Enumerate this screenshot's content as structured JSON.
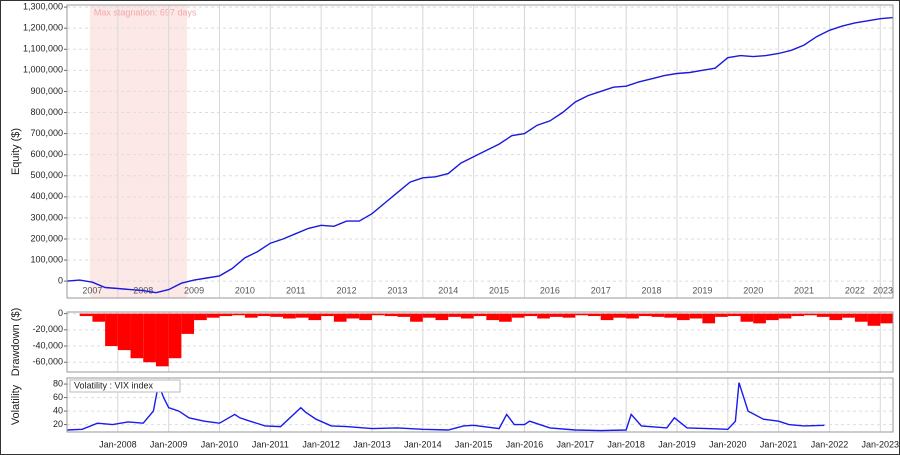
{
  "chart_data": [
    {
      "type": "line",
      "y_label": "Equity ($)",
      "color": "#1a1adb",
      "grid": true,
      "xlim": [
        2007.0,
        2023.25
      ],
      "ylim": [
        -80000,
        1310000
      ],
      "yticks": [
        {
          "value": 1300000,
          "label": "1,300,000"
        },
        {
          "value": 1200000,
          "label": "1,200,000"
        },
        {
          "value": 1100000,
          "label": "1,100,000"
        },
        {
          "value": 1000000,
          "label": "1,000,000"
        },
        {
          "value": 900000,
          "label": "900,000"
        },
        {
          "value": 800000,
          "label": "800,000"
        },
        {
          "value": 700000,
          "label": "700,000"
        },
        {
          "value": 600000,
          "label": "600,000"
        },
        {
          "value": 500000,
          "label": "500,000"
        },
        {
          "value": 400000,
          "label": "400,000"
        },
        {
          "value": 300000,
          "label": "300,000"
        },
        {
          "value": 200000,
          "label": "200,000"
        },
        {
          "value": 100000,
          "label": "100,000"
        },
        0
      ],
      "xticks": [
        {
          "value": 2007,
          "label": "2007"
        },
        {
          "value": 2008,
          "label": "2008"
        },
        {
          "value": 2009,
          "label": "2009"
        },
        {
          "value": 2010,
          "label": "2010"
        },
        {
          "value": 2011,
          "label": "2011"
        },
        {
          "value": 2012,
          "label": "2012"
        },
        {
          "value": 2013,
          "label": "2013"
        },
        {
          "value": 2014,
          "label": "2014"
        },
        {
          "value": 2015,
          "label": "2015"
        },
        {
          "value": 2016,
          "label": "2016"
        },
        {
          "value": 2017,
          "label": "2017"
        },
        {
          "value": 2018,
          "label": "2018"
        },
        {
          "value": 2019,
          "label": "2019"
        },
        {
          "value": 2020,
          "label": "2020"
        },
        {
          "value": 2021,
          "label": "2021"
        },
        {
          "value": 2022,
          "label": "2022"
        },
        {
          "value": 2023,
          "label": "2023"
        }
      ],
      "annotations": [
        {
          "text": "Max stagnation: 697 days",
          "x_start": 2007.45,
          "x_end": 2009.36,
          "color": "#fde8e8"
        }
      ],
      "x": [
        2007,
        2007.25,
        2007.5,
        2007.75,
        2008,
        2008.25,
        2008.5,
        2008.75,
        2009,
        2009.25,
        2009.5,
        2009.75,
        2010,
        2010.25,
        2010.5,
        2010.75,
        2011,
        2011.25,
        2011.5,
        2011.75,
        2012,
        2012.25,
        2012.5,
        2012.75,
        2013,
        2013.25,
        2013.5,
        2013.75,
        2014,
        2014.25,
        2014.5,
        2014.75,
        2015,
        2015.25,
        2015.5,
        2015.75,
        2016,
        2016.25,
        2016.5,
        2016.75,
        2017,
        2017.25,
        2017.5,
        2017.75,
        2018,
        2018.25,
        2018.5,
        2018.75,
        2019,
        2019.25,
        2019.5,
        2019.75,
        2020,
        2020.25,
        2020.5,
        2020.75,
        2021,
        2021.25,
        2021.5,
        2021.75,
        2022,
        2022.25,
        2022.5,
        2022.75,
        2023,
        2023.25
      ],
      "values": [
        0,
        5000,
        -5000,
        -30000,
        -35000,
        -40000,
        -45000,
        -55000,
        -40000,
        -10000,
        5000,
        15000,
        25000,
        60000,
        110000,
        140000,
        180000,
        200000,
        225000,
        250000,
        265000,
        260000,
        285000,
        285000,
        320000,
        370000,
        420000,
        470000,
        490000,
        495000,
        510000,
        560000,
        590000,
        620000,
        650000,
        690000,
        700000,
        740000,
        760000,
        800000,
        850000,
        880000,
        900000,
        920000,
        925000,
        945000,
        960000,
        975000,
        985000,
        990000,
        1000000,
        1010000,
        1060000,
        1070000,
        1065000,
        1070000,
        1080000,
        1095000,
        1120000,
        1160000,
        1190000,
        1210000,
        1225000,
        1235000,
        1245000,
        1250000
      ]
    },
    {
      "type": "bar",
      "y_label": "Drawdown ($)",
      "color": "#ff0000",
      "grid": true,
      "xlim": [
        2007.0,
        2023.25
      ],
      "ylim": [
        -72000,
        2000
      ],
      "yticks": [
        0,
        {
          "value": -20000,
          "label": "-20,000"
        },
        {
          "value": -40000,
          "label": "-40,000"
        },
        {
          "value": -60000,
          "label": "-60,000"
        }
      ],
      "x": [
        2007,
        2007.25,
        2007.5,
        2007.75,
        2008,
        2008.25,
        2008.5,
        2008.75,
        2009,
        2009.25,
        2009.5,
        2009.75,
        2010,
        2010.25,
        2010.5,
        2010.75,
        2011,
        2011.25,
        2011.5,
        2011.75,
        2012,
        2012.25,
        2012.5,
        2012.75,
        2013,
        2013.25,
        2013.5,
        2013.75,
        2014,
        2014.25,
        2014.5,
        2014.75,
        2015,
        2015.25,
        2015.5,
        2015.75,
        2016,
        2016.25,
        2016.5,
        2016.75,
        2017,
        2017.25,
        2017.5,
        2017.75,
        2018,
        2018.25,
        2018.5,
        2018.75,
        2019,
        2019.25,
        2019.5,
        2019.75,
        2020,
        2020.25,
        2020.5,
        2020.75,
        2021,
        2021.25,
        2021.5,
        2021.75,
        2022,
        2022.25,
        2022.5,
        2022.75,
        2023,
        2023.25
      ],
      "values": [
        0,
        -3000,
        -10000,
        -40000,
        -45000,
        -55000,
        -60000,
        -65000,
        -55000,
        -25000,
        -8000,
        -5000,
        -3000,
        -2000,
        -5000,
        -3000,
        -4000,
        -6000,
        -5000,
        -8000,
        -3000,
        -10000,
        -6000,
        -8000,
        -2000,
        -3000,
        -4000,
        -10000,
        -5000,
        -8000,
        -4000,
        -6000,
        -3000,
        -8000,
        -10000,
        -5000,
        -3000,
        -6000,
        -4000,
        -5000,
        -2000,
        -3000,
        -8000,
        -5000,
        -6000,
        -3000,
        -4000,
        -5000,
        -8000,
        -6000,
        -12000,
        -4000,
        -3000,
        -10000,
        -12000,
        -8000,
        -6000,
        -3000,
        -2000,
        -4000,
        -8000,
        -5000,
        -10000,
        -15000,
        -12000,
        -8000
      ]
    },
    {
      "type": "line",
      "y_label": "Volatility",
      "grid": true,
      "xlim": [
        2007.0,
        2023.25
      ],
      "ylim": [
        9,
        89
      ],
      "yticks": [
        80,
        60,
        40,
        20
      ],
      "xticks": [
        {
          "value": 2008,
          "label": "Jan-2008"
        },
        {
          "value": 2009,
          "label": "Jan-2009"
        },
        {
          "value": 2010,
          "label": "Jan-2010"
        },
        {
          "value": 2011,
          "label": "Jan-2011"
        },
        {
          "value": 2012,
          "label": "Jan-2012"
        },
        {
          "value": 2013,
          "label": "Jan-2013"
        },
        {
          "value": 2014,
          "label": "Jan-2014"
        },
        {
          "value": 2015,
          "label": "Jan-2015"
        },
        {
          "value": 2016,
          "label": "Jan-2016"
        },
        {
          "value": 2017,
          "label": "Jan-2017"
        },
        {
          "value": 2018,
          "label": "Jan-2018"
        },
        {
          "value": 2019,
          "label": "Jan-2019"
        },
        {
          "value": 2020,
          "label": "Jan-2020"
        },
        {
          "value": 2021,
          "label": "Jan-2021"
        },
        {
          "value": 2022,
          "label": "Jan-2022"
        },
        {
          "value": 2023,
          "label": "Jan-2023"
        }
      ],
      "x": [
        2007,
        2007.3,
        2007.6,
        2007.9,
        2008.2,
        2008.5,
        2008.7,
        2008.8,
        2008.9,
        2009.0,
        2009.2,
        2009.4,
        2009.7,
        2010.0,
        2010.3,
        2010.4,
        2010.6,
        2010.9,
        2011.2,
        2011.6,
        2011.7,
        2011.9,
        2012.2,
        2012.5,
        2013.0,
        2013.5,
        2014.0,
        2014.5,
        2014.8,
        2015.0,
        2015.5,
        2015.65,
        2015.8,
        2016.0,
        2016.1,
        2016.5,
        2017.0,
        2017.5,
        2018.0,
        2018.1,
        2018.3,
        2018.8,
        2018.95,
        2019.2,
        2019.6,
        2020.0,
        2020.15,
        2020.22,
        2020.4,
        2020.7,
        2021.0,
        2021.2,
        2021.5,
        2021.9
      ],
      "series": [
        {
          "name": "Volatility : VIX index",
          "color": "#1a1aee",
          "values": [
            12,
            13,
            22,
            20,
            24,
            22,
            40,
            80,
            60,
            45,
            40,
            30,
            25,
            22,
            35,
            30,
            25,
            18,
            17,
            45,
            38,
            28,
            18,
            17,
            14,
            15,
            13,
            12,
            18,
            19,
            14,
            35,
            20,
            20,
            25,
            15,
            12,
            11,
            12,
            35,
            18,
            15,
            30,
            15,
            14,
            13,
            25,
            82,
            40,
            28,
            25,
            20,
            18,
            19
          ]
        }
      ]
    }
  ]
}
